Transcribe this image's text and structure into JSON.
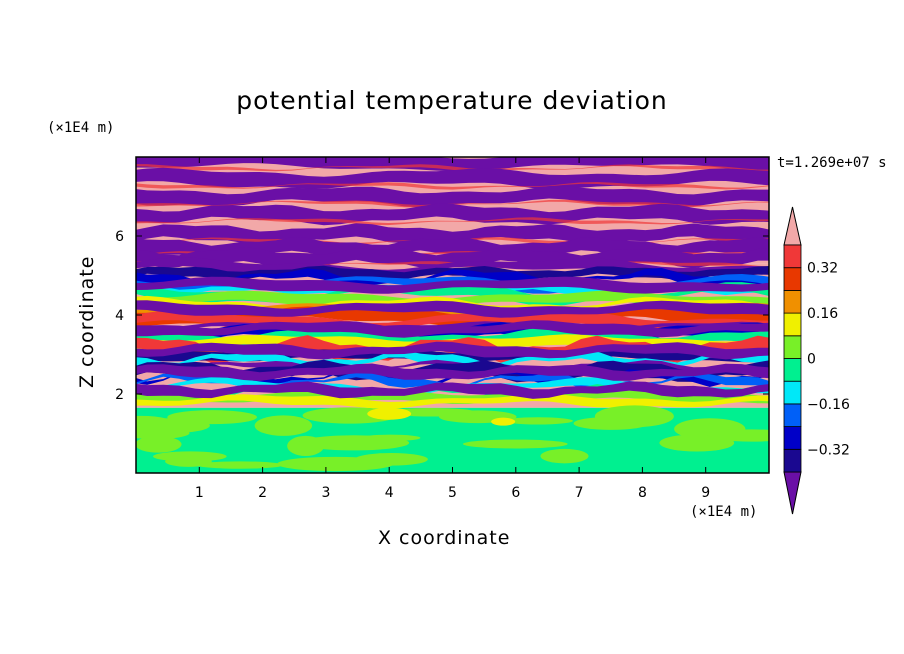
{
  "chart_data": {
    "type": "heatmap",
    "title": "potential temperature deviation",
    "xlabel": "X coordinate",
    "ylabel": "Z coordinate",
    "x_unit": "(×1E4 m)",
    "y_unit": "(×1E4 m)",
    "x_ticks": [
      1,
      2,
      3,
      4,
      5,
      6,
      7,
      8,
      9
    ],
    "y_ticks": [
      2,
      4,
      6
    ],
    "xlim": [
      0,
      10
    ],
    "ylim": [
      0,
      8
    ],
    "time_label": "t=1.269e+07 s",
    "colorbar": {
      "levels": [
        -0.4,
        -0.32,
        -0.24,
        -0.16,
        -0.08,
        0,
        0.08,
        0.16,
        0.24,
        0.32,
        0.4
      ],
      "tick_labels": [
        "0.32",
        "0.16",
        "0",
        "−0.16",
        "−0.32"
      ],
      "tick_values": [
        0.32,
        0.16,
        0,
        -0.16,
        -0.32
      ],
      "colors": [
        "#6a0fa6",
        "#1a0890",
        "#0000c8",
        "#0060f8",
        "#00e8f8",
        "#00f090",
        "#78f028",
        "#f0f000",
        "#f09000",
        "#e83800",
        "#f03838",
        "#f2a8a8"
      ],
      "extend": "both"
    },
    "bands": [
      {
        "z_range": [
          0,
          1.6
        ],
        "description": "green / light-green patches"
      },
      {
        "z_range": [
          1.6,
          5.3
        ],
        "description": "mixed bands, all colors"
      },
      {
        "z_range": [
          5.3,
          8
        ],
        "description": "alternating purple and pink layers"
      }
    ]
  }
}
